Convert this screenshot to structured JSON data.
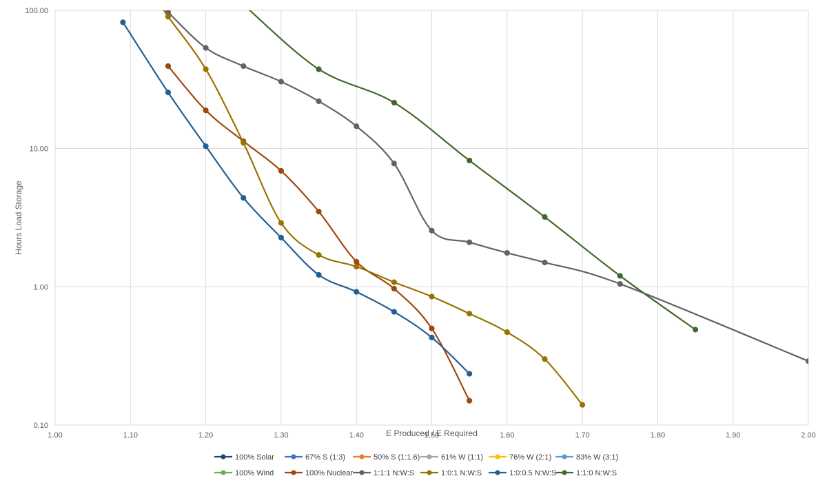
{
  "chart_data": {
    "type": "line",
    "title": "",
    "xlabel": "E Produced / E Required",
    "ylabel": "Hours Load Storage",
    "xlim": [
      1.0,
      2.0
    ],
    "ylim": [
      0.1,
      100
    ],
    "yscale": "log",
    "grid": true,
    "legend_position": "bottom",
    "x_ticks": [
      "1.00",
      "1.10",
      "1.20",
      "1.30",
      "1.40",
      "1.50",
      "1.60",
      "1.70",
      "1.80",
      "1.90",
      "2.00"
    ],
    "y_ticks": [
      "0.10",
      "1.00",
      "10.00",
      "100.00"
    ],
    "series": [
      {
        "name": "100% Solar",
        "color": "#264478",
        "points": []
      },
      {
        "name": "67% S (1:3)",
        "color": "#4472C4",
        "points": []
      },
      {
        "name": "50% S (1:1.6)",
        "color": "#ED7D31",
        "points": []
      },
      {
        "name": "61% W (1:1)",
        "color": "#A5A5A5",
        "points": []
      },
      {
        "name": "76% W (2:1)",
        "color": "#FFC000",
        "points": []
      },
      {
        "name": "83% W (3:1)",
        "color": "#5B9BD5",
        "points": []
      },
      {
        "name": "100% Wind",
        "color": "#70AD47",
        "points": []
      },
      {
        "name": "100% Nuclear",
        "color": "#9E480E",
        "points": [
          [
            1.15,
            39.5
          ],
          [
            1.2,
            18.9
          ],
          [
            1.25,
            11.3
          ],
          [
            1.3,
            6.9
          ],
          [
            1.35,
            3.5
          ],
          [
            1.4,
            1.52
          ],
          [
            1.45,
            0.97
          ],
          [
            1.5,
            0.5
          ],
          [
            1.55,
            0.15
          ]
        ]
      },
      {
        "name": "1:1:1 N:W:S",
        "color": "#636363",
        "points": [
          [
            1.15,
            97
          ],
          [
            1.2,
            53.5
          ],
          [
            1.25,
            39.5
          ],
          [
            1.3,
            30.5
          ],
          [
            1.35,
            22.0
          ],
          [
            1.4,
            14.5
          ],
          [
            1.45,
            7.8
          ],
          [
            1.5,
            2.55
          ],
          [
            1.55,
            2.1
          ],
          [
            1.6,
            1.76
          ],
          [
            1.65,
            1.5
          ],
          [
            1.75,
            1.05
          ],
          [
            2.0,
            0.29
          ]
        ]
      },
      {
        "name": "1:0:1 N:W:S",
        "color": "#997300",
        "points": [
          [
            1.14,
            110
          ],
          [
            1.15,
            90
          ],
          [
            1.2,
            37.5
          ],
          [
            1.25,
            11.0
          ],
          [
            1.3,
            2.9
          ],
          [
            1.35,
            1.7
          ],
          [
            1.4,
            1.4
          ],
          [
            1.45,
            1.08
          ],
          [
            1.5,
            0.85
          ],
          [
            1.55,
            0.64
          ],
          [
            1.6,
            0.47
          ],
          [
            1.65,
            0.3
          ],
          [
            1.7,
            0.14
          ]
        ]
      },
      {
        "name": "1:0:0.5 N:W:S",
        "color": "#255E91",
        "points": [
          [
            1.09,
            82
          ],
          [
            1.15,
            25.5
          ],
          [
            1.2,
            10.4
          ],
          [
            1.25,
            4.4
          ],
          [
            1.3,
            2.27
          ],
          [
            1.35,
            1.22
          ],
          [
            1.4,
            0.92
          ],
          [
            1.45,
            0.66
          ],
          [
            1.5,
            0.43
          ],
          [
            1.55,
            0.235
          ]
        ]
      },
      {
        "name": "1:1:0 N:W:S",
        "color": "#43682B",
        "points": [
          [
            1.25,
            110
          ],
          [
            1.35,
            37.5
          ],
          [
            1.45,
            21.5
          ],
          [
            1.55,
            8.2
          ],
          [
            1.65,
            3.2
          ],
          [
            1.75,
            1.2
          ],
          [
            1.85,
            0.49
          ]
        ]
      }
    ],
    "marker_from_index": {
      "1:0:1 N:W:S": 1,
      "1:1:0 N:W:S": 1
    }
  }
}
